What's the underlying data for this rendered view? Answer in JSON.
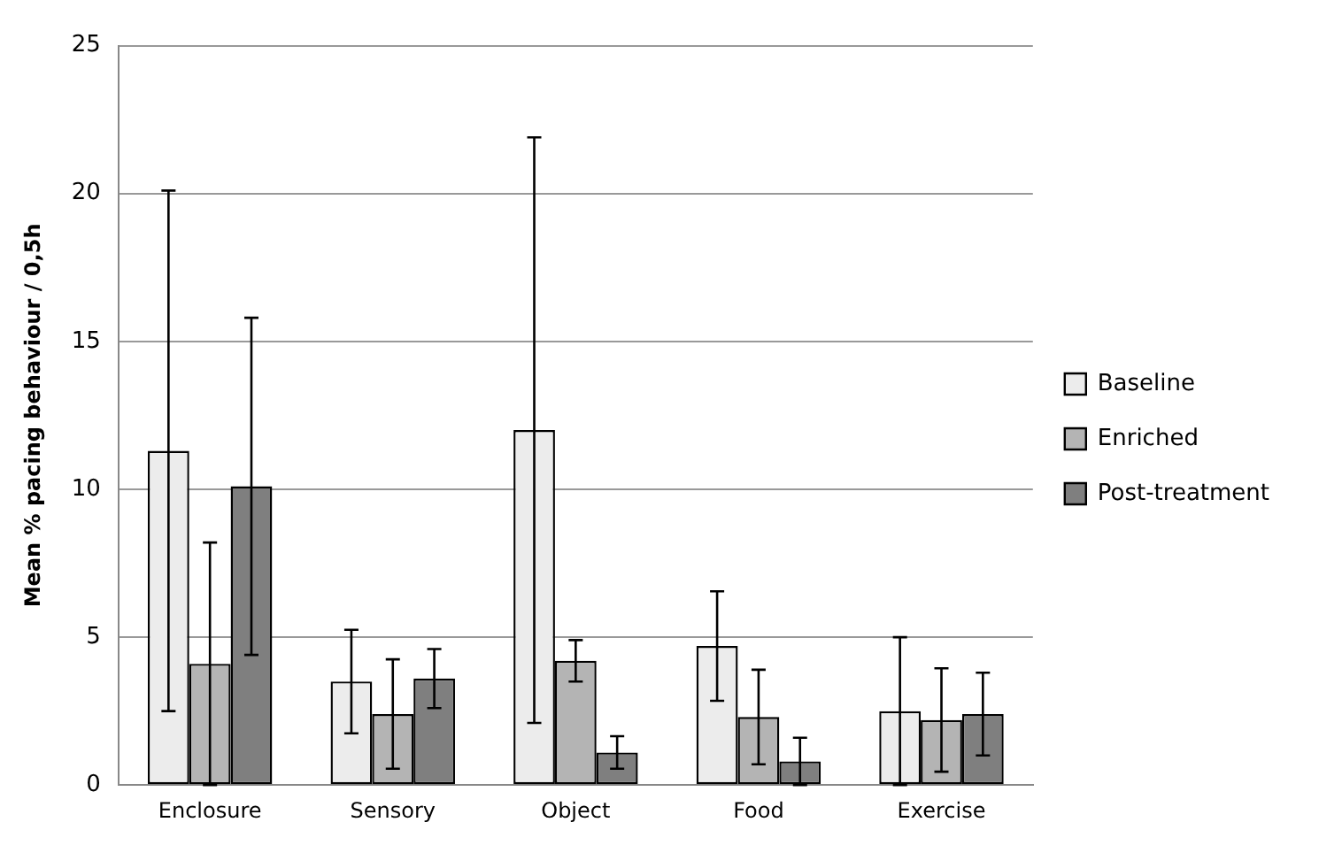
{
  "chart_data": {
    "type": "bar",
    "ylabel": "Mean % pacing behaviour / 0,5h",
    "categories": [
      "Enclosure",
      "Sensory",
      "Object",
      "Food",
      "Exercise"
    ],
    "ylim": [
      0,
      25
    ],
    "yticks": [
      0,
      5,
      10,
      15,
      20,
      25
    ],
    "grid": "y",
    "legend": "right",
    "series": [
      {
        "name": "Baseline",
        "color": "#ececec",
        "values": [
          11.3,
          3.5,
          12.0,
          4.7,
          2.5
        ],
        "errors": [
          8.8,
          1.75,
          9.9,
          1.85,
          2.5
        ]
      },
      {
        "name": "Enriched",
        "color": "#b4b4b4",
        "values": [
          4.1,
          2.4,
          4.2,
          2.3,
          2.2
        ],
        "errors": [
          4.1,
          1.85,
          0.7,
          1.6,
          1.75
        ]
      },
      {
        "name": "Post-treatment",
        "color": "#7f7f7f",
        "values": [
          10.1,
          3.6,
          1.1,
          0.8,
          2.4
        ],
        "errors": [
          5.7,
          1.0,
          0.55,
          0.8,
          1.4
        ]
      }
    ]
  }
}
